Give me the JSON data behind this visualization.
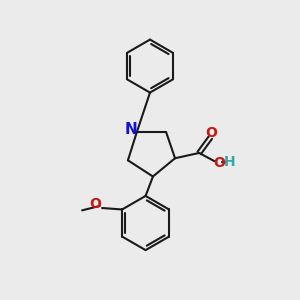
{
  "bg_color": "#ebebeb",
  "bond_color": "#1a1a1a",
  "bond_width": 1.5,
  "N_color": "#1414cc",
  "O_color": "#cc1414",
  "H_color": "#33aaaa",
  "figsize": [
    3.0,
    3.0
  ],
  "dpi": 100,
  "xlim": [
    0,
    10
  ],
  "ylim": [
    0,
    10
  ]
}
